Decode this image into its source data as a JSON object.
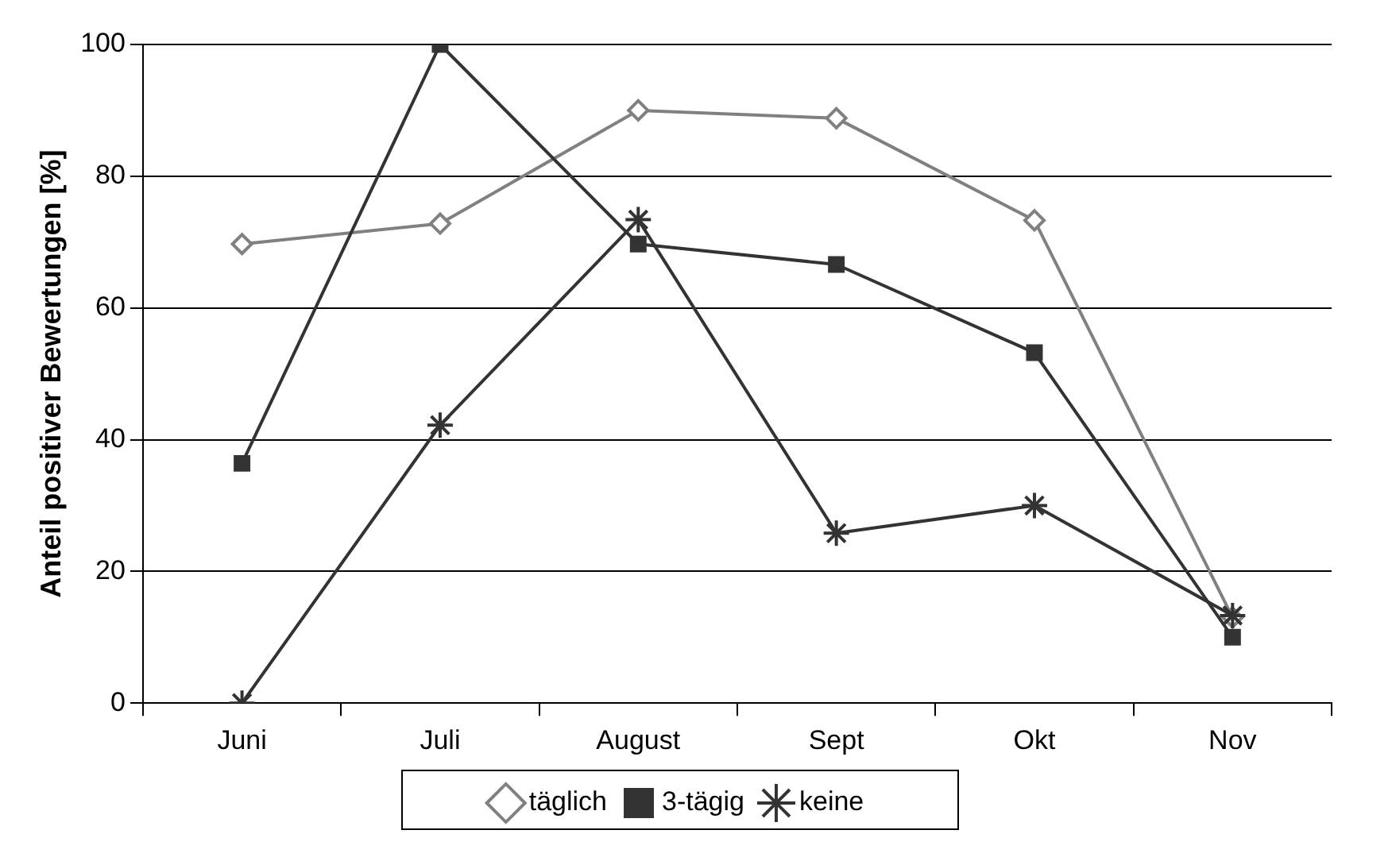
{
  "chart_data": {
    "type": "line",
    "ylabel": "Anteil positiver Bewertungen [%]",
    "categories": [
      "Juni",
      "Juli",
      "August",
      "Sept",
      "Okt",
      "Nov"
    ],
    "series": [
      {
        "name": "täglich",
        "color": "#808080",
        "marker": "diamond",
        "values": [
          69.7,
          72.8,
          90,
          88.8,
          73.3,
          13
        ]
      },
      {
        "name": "3-tägig",
        "color": "#333333",
        "marker": "square",
        "values": [
          36.4,
          100,
          69.7,
          66.6,
          53.2,
          10
        ]
      },
      {
        "name": "keine",
        "color": "#333333",
        "marker": "cross",
        "values": [
          0,
          42.2,
          73.4,
          25.8,
          30,
          13.3
        ]
      }
    ],
    "ylim": [
      0,
      100
    ],
    "yticks": [
      0,
      20,
      40,
      60,
      80,
      100
    ],
    "grid": "y",
    "legend": "bottom",
    "line_style": "solid"
  }
}
